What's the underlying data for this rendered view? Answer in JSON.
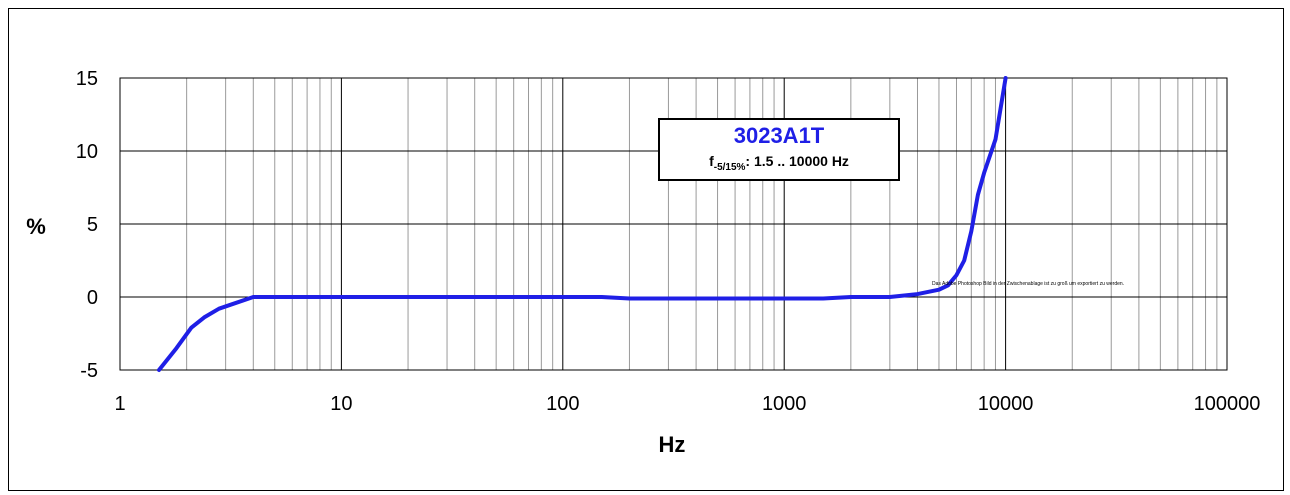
{
  "chart_data": {
    "type": "line",
    "title": "",
    "xlabel": "Hz",
    "ylabel": "%",
    "x_scale": "log",
    "xlim": [
      1,
      100000
    ],
    "ylim": [
      -5,
      15
    ],
    "x_ticks": [
      "1",
      "10",
      "100",
      "1000",
      "10000",
      "100000"
    ],
    "y_ticks": [
      "15",
      "10",
      "5",
      "0",
      "-5"
    ],
    "grid": true,
    "series": [
      {
        "color": "#1f1fe6",
        "x": [
          1.5,
          1.8,
          2.1,
          2.4,
          2.8,
          3.2,
          4,
          5,
          10,
          20,
          50,
          100,
          150,
          200,
          300,
          500,
          1000,
          1500,
          2000,
          3000,
          4000,
          5000,
          5500,
          6000,
          6500,
          7000,
          7500,
          8000,
          9000,
          10000
        ],
        "y": [
          -5,
          -3.5,
          -2.1,
          -1.4,
          -0.8,
          -0.5,
          0,
          0,
          0,
          0,
          0,
          0,
          0,
          -0.1,
          -0.1,
          -0.1,
          -0.1,
          -0.1,
          0,
          0,
          0.2,
          0.5,
          0.8,
          1.5,
          2.5,
          4.5,
          7,
          8.5,
          10.8,
          15
        ]
      }
    ],
    "annotation": {
      "title": "3023A1T",
      "f_prefix": "f",
      "f_subscript": "-5/15%",
      "f_value": ":  1.5 .. 10000 Hz"
    },
    "note": "Das Adobe Photoshop Bild in der Zwischenablage ist zu groß um exportiert zu werden."
  }
}
